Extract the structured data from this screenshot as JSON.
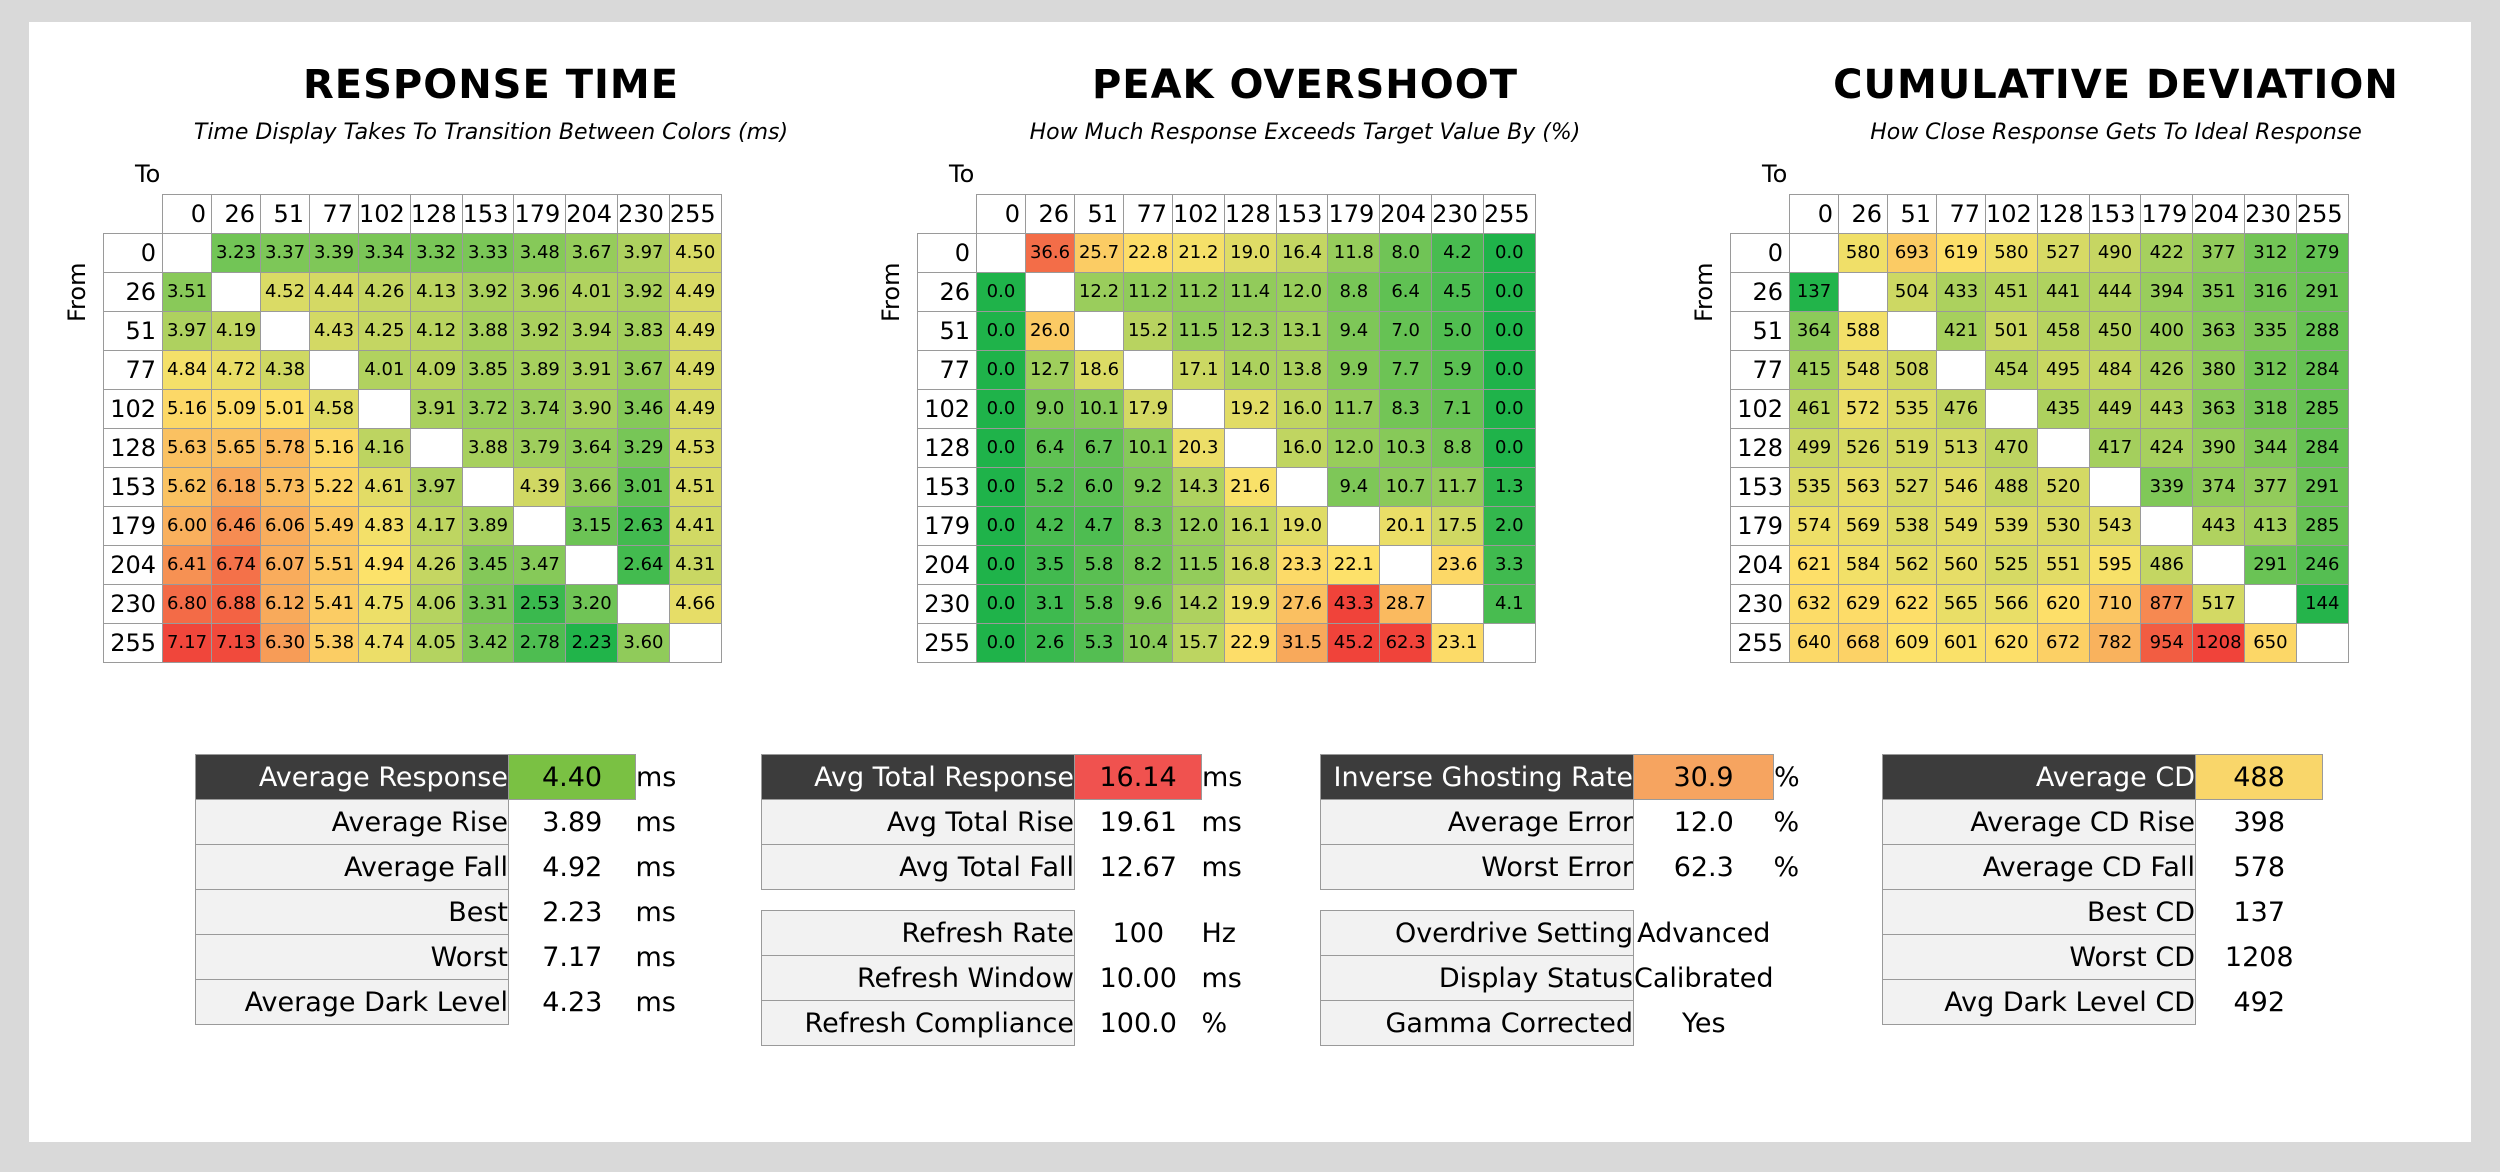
{
  "chart_data": [
    {
      "type": "heatmap",
      "title": "RESPONSE TIME",
      "subtitle": "Time Display Takes To Transition Between Colors (ms)",
      "xlabel": "To",
      "ylabel": "From",
      "levels": [
        0,
        26,
        51,
        77,
        102,
        128,
        153,
        179,
        204,
        230,
        255
      ],
      "values": [
        [
          null,
          "3.23",
          "3.37",
          "3.39",
          "3.34",
          "3.32",
          "3.33",
          "3.48",
          "3.67",
          "3.97",
          "4.50"
        ],
        [
          "3.51",
          null,
          "4.52",
          "4.44",
          "4.26",
          "4.13",
          "3.92",
          "3.96",
          "4.01",
          "3.92",
          "4.49"
        ],
        [
          "3.97",
          "4.19",
          null,
          "4.43",
          "4.25",
          "4.12",
          "3.88",
          "3.92",
          "3.94",
          "3.83",
          "4.49"
        ],
        [
          "4.84",
          "4.72",
          "4.38",
          null,
          "4.01",
          "4.09",
          "3.85",
          "3.89",
          "3.91",
          "3.67",
          "4.49"
        ],
        [
          "5.16",
          "5.09",
          "5.01",
          "4.58",
          null,
          "3.91",
          "3.72",
          "3.74",
          "3.90",
          "3.46",
          "4.49"
        ],
        [
          "5.63",
          "5.65",
          "5.78",
          "5.16",
          "4.16",
          null,
          "3.88",
          "3.79",
          "3.64",
          "3.29",
          "4.53"
        ],
        [
          "5.62",
          "6.18",
          "5.73",
          "5.22",
          "4.61",
          "3.97",
          null,
          "4.39",
          "3.66",
          "3.01",
          "4.51"
        ],
        [
          "6.00",
          "6.46",
          "6.06",
          "5.49",
          "4.83",
          "4.17",
          "3.89",
          null,
          "3.15",
          "2.63",
          "4.41"
        ],
        [
          "6.41",
          "6.74",
          "6.07",
          "5.51",
          "4.94",
          "4.26",
          "3.45",
          "3.47",
          null,
          "2.64",
          "4.31"
        ],
        [
          "6.80",
          "6.88",
          "6.12",
          "5.41",
          "4.75",
          "4.06",
          "3.31",
          "2.53",
          "3.20",
          null,
          "4.66"
        ],
        [
          "7.17",
          "7.13",
          "6.30",
          "5.38",
          "4.74",
          "4.05",
          "3.42",
          "2.78",
          "2.23",
          "3.60",
          null
        ]
      ]
    },
    {
      "type": "heatmap",
      "title": "PEAK OVERSHOOT",
      "subtitle": "How Much Response Exceeds Target Value By (%)",
      "xlabel": "To",
      "ylabel": "From",
      "levels": [
        0,
        26,
        51,
        77,
        102,
        128,
        153,
        179,
        204,
        230,
        255
      ],
      "values": [
        [
          null,
          "36.6",
          "25.7",
          "22.8",
          "21.2",
          "19.0",
          "16.4",
          "11.8",
          "8.0",
          "4.2",
          "0.0"
        ],
        [
          "0.0",
          null,
          "12.2",
          "11.2",
          "11.2",
          "11.4",
          "12.0",
          "8.8",
          "6.4",
          "4.5",
          "0.0"
        ],
        [
          "0.0",
          "26.0",
          null,
          "15.2",
          "11.5",
          "12.3",
          "13.1",
          "9.4",
          "7.0",
          "5.0",
          "0.0"
        ],
        [
          "0.0",
          "12.7",
          "18.6",
          null,
          "17.1",
          "14.0",
          "13.8",
          "9.9",
          "7.7",
          "5.9",
          "0.0"
        ],
        [
          "0.0",
          "9.0",
          "10.1",
          "17.9",
          null,
          "19.2",
          "16.0",
          "11.7",
          "8.3",
          "7.1",
          "0.0"
        ],
        [
          "0.0",
          "6.4",
          "6.7",
          "10.1",
          "20.3",
          null,
          "16.0",
          "12.0",
          "10.3",
          "8.8",
          "0.0"
        ],
        [
          "0.0",
          "5.2",
          "6.0",
          "9.2",
          "14.3",
          "21.6",
          null,
          "9.4",
          "10.7",
          "11.7",
          "1.3"
        ],
        [
          "0.0",
          "4.2",
          "4.7",
          "8.3",
          "12.0",
          "16.1",
          "19.0",
          null,
          "20.1",
          "17.5",
          "2.0"
        ],
        [
          "0.0",
          "3.5",
          "5.8",
          "8.2",
          "11.5",
          "16.8",
          "23.3",
          "22.1",
          null,
          "23.6",
          "3.3"
        ],
        [
          "0.0",
          "3.1",
          "5.8",
          "9.6",
          "14.2",
          "19.9",
          "27.6",
          "43.3",
          "28.7",
          null,
          "4.1"
        ],
        [
          "0.0",
          "2.6",
          "5.3",
          "10.4",
          "15.7",
          "22.9",
          "31.5",
          "45.2",
          "62.3",
          "23.1",
          null
        ]
      ]
    },
    {
      "type": "heatmap",
      "title": "CUMULATIVE DEVIATION",
      "subtitle": "How Close Response Gets To Ideal Response",
      "xlabel": "To",
      "ylabel": "From",
      "levels": [
        0,
        26,
        51,
        77,
        102,
        128,
        153,
        179,
        204,
        230,
        255
      ],
      "values": [
        [
          null,
          "580",
          "693",
          "619",
          "580",
          "527",
          "490",
          "422",
          "377",
          "312",
          "279"
        ],
        [
          "137",
          null,
          "504",
          "433",
          "451",
          "441",
          "444",
          "394",
          "351",
          "316",
          "291"
        ],
        [
          "364",
          "588",
          null,
          "421",
          "501",
          "458",
          "450",
          "400",
          "363",
          "335",
          "288"
        ],
        [
          "415",
          "548",
          "508",
          null,
          "454",
          "495",
          "484",
          "426",
          "380",
          "312",
          "284"
        ],
        [
          "461",
          "572",
          "535",
          "476",
          null,
          "435",
          "449",
          "443",
          "363",
          "318",
          "285"
        ],
        [
          "499",
          "526",
          "519",
          "513",
          "470",
          null,
          "417",
          "424",
          "390",
          "344",
          "284"
        ],
        [
          "535",
          "563",
          "527",
          "546",
          "488",
          "520",
          null,
          "339",
          "374",
          "377",
          "291"
        ],
        [
          "574",
          "569",
          "538",
          "549",
          "539",
          "530",
          "543",
          null,
          "443",
          "413",
          "285"
        ],
        [
          "621",
          "584",
          "562",
          "560",
          "525",
          "551",
          "595",
          "486",
          null,
          "291",
          "246"
        ],
        [
          "632",
          "629",
          "622",
          "565",
          "566",
          "620",
          "710",
          "877",
          "517",
          null,
          "144"
        ],
        [
          "640",
          "668",
          "609",
          "601",
          "620",
          "672",
          "782",
          "954",
          "1208",
          "650",
          null
        ]
      ]
    }
  ],
  "stats": [
    {
      "rows": [
        {
          "label": "Average Response",
          "value": "4.40",
          "unit": "ms",
          "highlight": true,
          "color": "#7ac143"
        },
        {
          "label": "Average Rise",
          "value": "3.89",
          "unit": "ms"
        },
        {
          "label": "Average Fall",
          "value": "4.92",
          "unit": "ms"
        },
        {
          "label": "Best",
          "value": "2.23",
          "unit": "ms"
        },
        {
          "label": "Worst",
          "value": "7.17",
          "unit": "ms"
        },
        {
          "label": "Average Dark Level",
          "value": "4.23",
          "unit": "ms"
        }
      ]
    },
    {
      "rows": [
        {
          "label": "Avg Total Response",
          "value": "16.14",
          "unit": "ms",
          "highlight": true,
          "color": "#f0524f"
        },
        {
          "label": "Avg Total Rise",
          "value": "19.61",
          "unit": "ms"
        },
        {
          "label": "Avg Total Fall",
          "value": "12.67",
          "unit": "ms"
        },
        {
          "gap": true
        },
        {
          "label": "Refresh Rate",
          "value": "100",
          "unit": "Hz"
        },
        {
          "label": "Refresh Window",
          "value": "10.00",
          "unit": "ms"
        },
        {
          "label": "Refresh Compliance",
          "value": "100.0",
          "unit": "%"
        }
      ]
    },
    {
      "rows": [
        {
          "label": "Inverse Ghosting Rate",
          "value": "30.9",
          "unit": "%",
          "highlight": true,
          "color": "#f6a460"
        },
        {
          "label": "Average Error",
          "value": "12.0",
          "unit": "%"
        },
        {
          "label": "Worst Error",
          "value": "62.3",
          "unit": "%"
        },
        {
          "gap": true
        },
        {
          "label": "Overdrive Setting",
          "value": "Advanced",
          "unit": ""
        },
        {
          "label": "Display Status",
          "value": "Calibrated",
          "unit": ""
        },
        {
          "label": "Gamma Corrected",
          "value": "Yes",
          "unit": ""
        }
      ]
    },
    {
      "rows": [
        {
          "label": "Average CD",
          "value": "488",
          "unit": "",
          "highlight": true,
          "color": "#f9d66a"
        },
        {
          "label": "Average CD Rise",
          "value": "398",
          "unit": ""
        },
        {
          "label": "Average CD Fall",
          "value": "578",
          "unit": ""
        },
        {
          "label": "Best CD",
          "value": "137",
          "unit": ""
        },
        {
          "label": "Worst CD",
          "value": "1208",
          "unit": ""
        },
        {
          "label": "Avg Dark Level CD",
          "value": "492",
          "unit": ""
        }
      ]
    }
  ],
  "colors": {
    "green": "#1fb34a",
    "yellow": "#fde26a",
    "orange": "#f8a65a",
    "red": "#f0433a"
  }
}
